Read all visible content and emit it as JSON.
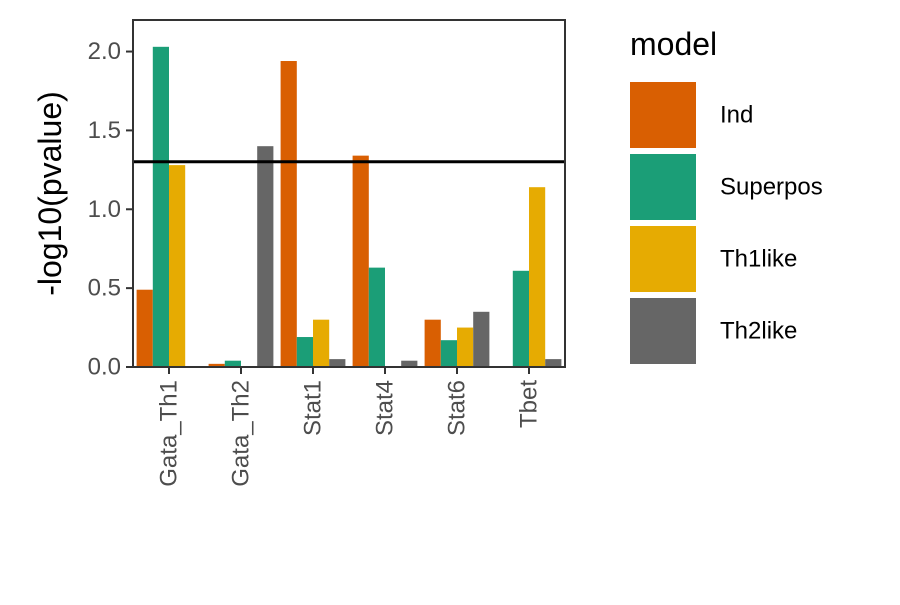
{
  "chart_data": {
    "type": "bar",
    "title": "",
    "xlabel": "",
    "ylabel": "-log10(pvalue)",
    "ylim": [
      0,
      2.2
    ],
    "yticks": [
      "0.0",
      "0.5",
      "1.0",
      "1.5",
      "2.0"
    ],
    "grid": false,
    "legend": {
      "title": "model",
      "position": "right"
    },
    "categories": [
      "Gata_Th1",
      "Gata_Th2",
      "Stat1",
      "Stat4",
      "Stat6",
      "Tbet"
    ],
    "series": [
      {
        "name": "Ind",
        "color": "#D95F02",
        "values": [
          0.49,
          0.02,
          1.94,
          1.34,
          0.3,
          null
        ]
      },
      {
        "name": "Superpos",
        "color": "#1B9E77",
        "values": [
          2.03,
          0.04,
          0.19,
          0.63,
          0.17,
          0.61
        ]
      },
      {
        "name": "Th1like",
        "color": "#E6AB02",
        "values": [
          1.28,
          null,
          0.3,
          null,
          0.25,
          1.14
        ]
      },
      {
        "name": "Th2like",
        "color": "#666666",
        "values": [
          null,
          1.4,
          0.05,
          0.04,
          0.35,
          0.05
        ]
      }
    ],
    "reference_line": {
      "y": 1.30103,
      "color": "#000000"
    }
  }
}
